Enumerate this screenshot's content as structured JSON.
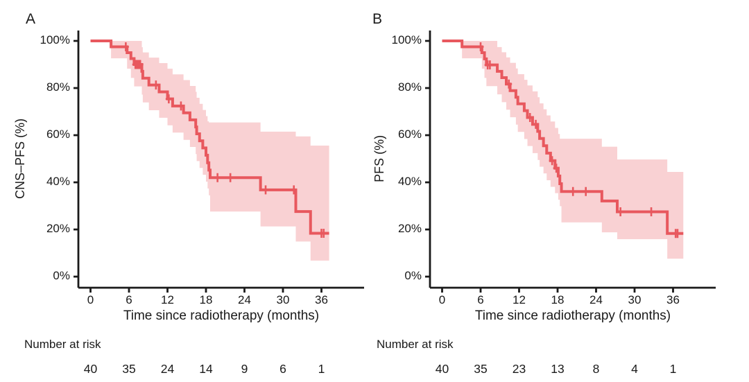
{
  "figure": {
    "curve_color": "#e8585e",
    "band_color": "#f9d1d3",
    "axis_color": "#1a1a1a",
    "text_color": "#1a1a1a",
    "background": "#ffffff"
  },
  "chart_data": [
    {
      "type": "line",
      "subtype": "kaplan-meier-step-curve-with-confidence-band",
      "panel_label": "A",
      "xlabel": "Time since radiotherapy (months)",
      "ylabel": "CNS–PFS (%)",
      "xlim": [
        0,
        39
      ],
      "ylim": [
        0,
        100
      ],
      "grid": "off",
      "legend": "none",
      "xticks": [
        0,
        6,
        12,
        18,
        24,
        30,
        36
      ],
      "ytick_values": [
        0,
        20,
        40,
        60,
        80,
        100
      ],
      "ytick_labels": [
        "0%",
        "20%",
        "40%",
        "60%",
        "80%",
        "100%"
      ],
      "risk_label": "Number at risk",
      "risk_times": [
        0,
        6,
        12,
        18,
        24,
        30,
        36
      ],
      "risk_counts": [
        40,
        35,
        24,
        14,
        9,
        6,
        1
      ],
      "end_time": 37.2,
      "steps": [
        [
          0,
          100
        ],
        [
          3.2,
          97.5
        ],
        [
          5.7,
          95
        ],
        [
          6.3,
          92.5
        ],
        [
          6.8,
          90
        ],
        [
          8.0,
          87.1
        ],
        [
          8.15,
          84.2
        ],
        [
          9.1,
          81.3
        ],
        [
          10.7,
          78.4
        ],
        [
          12.0,
          75.4
        ],
        [
          12.8,
          72.4
        ],
        [
          14.5,
          69.5
        ],
        [
          15.5,
          66.5
        ],
        [
          16.4,
          63.5
        ],
        [
          16.55,
          60.6
        ],
        [
          17.0,
          57.6
        ],
        [
          17.5,
          54.6
        ],
        [
          18.0,
          51.5
        ],
        [
          18.25,
          48.3
        ],
        [
          18.45,
          45.2
        ],
        [
          18.65,
          42.0
        ],
        [
          26.5,
          36.8
        ],
        [
          32.0,
          27.6
        ],
        [
          34.3,
          18.4
        ]
      ],
      "censors": [
        [
          5.5,
          97.5
        ],
        [
          7.0,
          90
        ],
        [
          7.25,
          90
        ],
        [
          7.5,
          90
        ],
        [
          7.75,
          90
        ],
        [
          10.2,
          81.3
        ],
        [
          12.2,
          75.4
        ],
        [
          14.1,
          72.4
        ],
        [
          19.8,
          42.0
        ],
        [
          21.8,
          42.0
        ],
        [
          27.3,
          36.8
        ],
        [
          31.7,
          36.8
        ],
        [
          36.0,
          18.4
        ],
        [
          36.35,
          18.4
        ]
      ],
      "ci": [
        [
          3.2,
          92.6,
          100
        ],
        [
          5.7,
          88.2,
          100
        ],
        [
          6.3,
          84.3,
          100
        ],
        [
          6.8,
          80.7,
          100
        ],
        [
          8.0,
          77.2,
          97.3
        ],
        [
          8.15,
          73.9,
          95.1
        ],
        [
          9.1,
          70.6,
          92.9
        ],
        [
          10.7,
          67.4,
          90.6
        ],
        [
          12.0,
          64.2,
          88.2
        ],
        [
          12.8,
          61.1,
          85.8
        ],
        [
          14.5,
          58.0,
          83.4
        ],
        [
          15.5,
          55.0,
          80.9
        ],
        [
          16.4,
          52.0,
          78.4
        ],
        [
          16.55,
          49.0,
          75.9
        ],
        [
          17.0,
          46.1,
          73.3
        ],
        [
          17.5,
          43.2,
          70.7
        ],
        [
          18.0,
          40.3,
          68.1
        ],
        [
          18.25,
          37.4,
          65.9
        ],
        [
          18.45,
          34.5,
          65.4
        ],
        [
          18.65,
          27.6,
          65.4
        ],
        [
          26.5,
          21.3,
          61.5
        ],
        [
          32.0,
          14.9,
          59.5
        ],
        [
          34.3,
          6.8,
          55.6
        ]
      ]
    },
    {
      "type": "line",
      "subtype": "kaplan-meier-step-curve-with-confidence-band",
      "panel_label": "B",
      "xlabel": "Time since radiotherapy (months)",
      "ylabel": "PFS (%)",
      "xlim": [
        0,
        39
      ],
      "ylim": [
        0,
        100
      ],
      "grid": "off",
      "legend": "none",
      "xticks": [
        0,
        6,
        12,
        18,
        24,
        30,
        36
      ],
      "ytick_values": [
        0,
        20,
        40,
        60,
        80,
        100
      ],
      "ytick_labels": [
        "0%",
        "20%",
        "40%",
        "60%",
        "80%",
        "100%"
      ],
      "risk_label": "Number at risk",
      "risk_times": [
        0,
        6,
        12,
        18,
        24,
        30,
        36
      ],
      "risk_counts": [
        40,
        35,
        23,
        13,
        8,
        4,
        1
      ],
      "end_time": 37.6,
      "steps": [
        [
          0,
          100
        ],
        [
          3.1,
          97.5
        ],
        [
          6.2,
          95
        ],
        [
          6.6,
          92.4
        ],
        [
          6.9,
          89.8
        ],
        [
          8.6,
          87.1
        ],
        [
          9.3,
          84.4
        ],
        [
          10.0,
          81.7
        ],
        [
          10.6,
          78.9
        ],
        [
          11.5,
          76.1
        ],
        [
          11.8,
          73.3
        ],
        [
          12.8,
          70.4
        ],
        [
          13.3,
          67.5
        ],
        [
          14.1,
          64.6
        ],
        [
          14.9,
          61.6
        ],
        [
          15.2,
          58.6
        ],
        [
          15.8,
          55.5
        ],
        [
          16.3,
          52.4
        ],
        [
          16.9,
          49.2
        ],
        [
          17.6,
          46.0
        ],
        [
          18.1,
          42.7
        ],
        [
          18.35,
          39.4
        ],
        [
          18.6,
          36.1
        ],
        [
          24.9,
          32.1
        ],
        [
          27.3,
          27.5
        ],
        [
          35.1,
          18.3
        ]
      ],
      "censors": [
        [
          6.0,
          97.5
        ],
        [
          7.1,
          89.8
        ],
        [
          7.45,
          89.8
        ],
        [
          10.4,
          81.7
        ],
        [
          13.7,
          67.5
        ],
        [
          14.6,
          64.6
        ],
        [
          17.15,
          49.2
        ],
        [
          17.8,
          46.0
        ],
        [
          20.4,
          36.1
        ],
        [
          22.4,
          36.1
        ],
        [
          27.8,
          27.5
        ],
        [
          32.6,
          27.5
        ],
        [
          36.4,
          18.3
        ],
        [
          36.7,
          18.3
        ]
      ],
      "ci": [
        [
          3.1,
          92.6,
          100
        ],
        [
          6.2,
          88.2,
          100
        ],
        [
          6.6,
          84.3,
          100
        ],
        [
          6.9,
          80.8,
          100
        ],
        [
          8.6,
          77.3,
          97.4
        ],
        [
          9.3,
          74.0,
          95.2
        ],
        [
          10.0,
          70.8,
          93.0
        ],
        [
          10.6,
          67.6,
          90.7
        ],
        [
          11.5,
          64.5,
          88.3
        ],
        [
          11.8,
          61.4,
          85.9
        ],
        [
          12.8,
          58.4,
          83.5
        ],
        [
          13.3,
          55.4,
          81.1
        ],
        [
          14.1,
          52.4,
          78.6
        ],
        [
          14.9,
          49.5,
          76.1
        ],
        [
          15.2,
          46.6,
          73.5
        ],
        [
          15.8,
          43.8,
          71.0
        ],
        [
          16.3,
          40.9,
          68.4
        ],
        [
          16.9,
          38.1,
          65.8
        ],
        [
          17.6,
          35.4,
          63.1
        ],
        [
          18.1,
          32.6,
          60.5
        ],
        [
          18.35,
          29.9,
          58.5
        ],
        [
          18.6,
          23.0,
          58.5
        ],
        [
          24.9,
          18.8,
          55.1
        ],
        [
          27.3,
          15.9,
          49.7
        ],
        [
          35.1,
          7.6,
          44.4
        ]
      ]
    }
  ]
}
